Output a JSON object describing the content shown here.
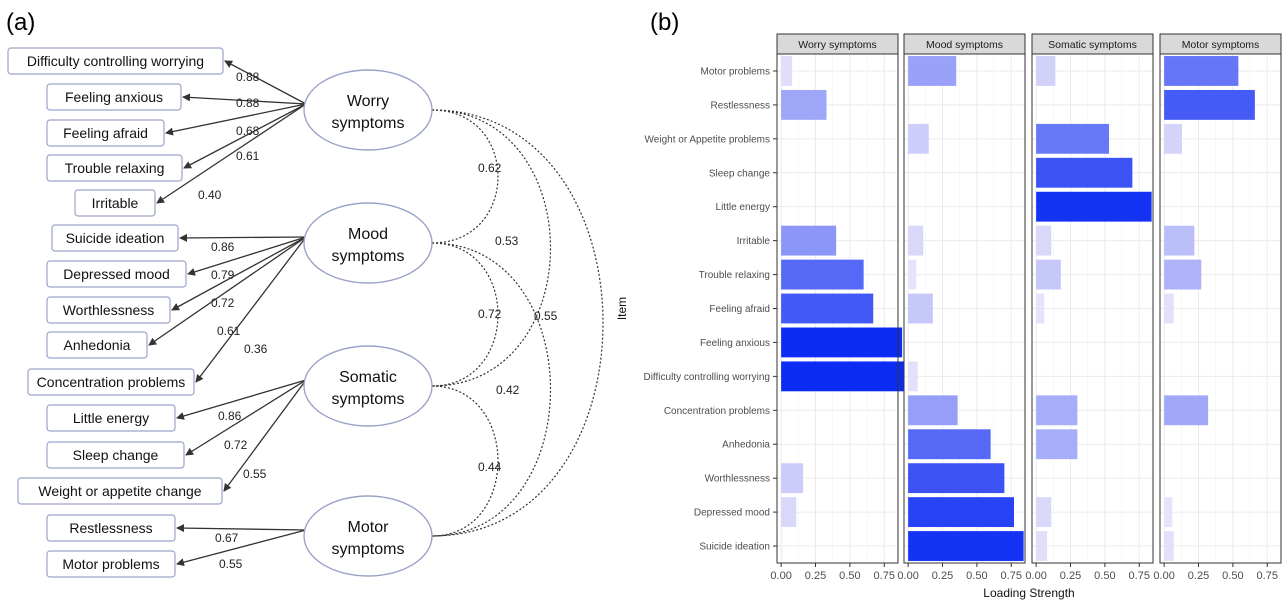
{
  "panel_a": {
    "label": "(a)",
    "factors": [
      {
        "id": "worry",
        "lines": [
          "Worry",
          "symptoms"
        ]
      },
      {
        "id": "mood",
        "lines": [
          "Mood",
          "symptoms"
        ]
      },
      {
        "id": "somatic",
        "lines": [
          "Somatic",
          "symptoms"
        ]
      },
      {
        "id": "motor",
        "lines": [
          "Motor",
          "symptoms"
        ]
      }
    ],
    "items": [
      {
        "label": "Difficulty controlling worrying",
        "factor": "worry",
        "loading": "0.88"
      },
      {
        "label": "Feeling anxious",
        "factor": "worry",
        "loading": "0.88"
      },
      {
        "label": "Feeling afraid",
        "factor": "worry",
        "loading": "0.68"
      },
      {
        "label": "Trouble relaxing",
        "factor": "worry",
        "loading": "0.61"
      },
      {
        "label": "Irritable",
        "factor": "worry",
        "loading": "0.40"
      },
      {
        "label": "Suicide ideation",
        "factor": "mood",
        "loading": "0.86"
      },
      {
        "label": "Depressed mood",
        "factor": "mood",
        "loading": "0.79"
      },
      {
        "label": "Worthlessness",
        "factor": "mood",
        "loading": "0.72"
      },
      {
        "label": "Anhedonia",
        "factor": "mood",
        "loading": "0.61"
      },
      {
        "label": "Concentration problems",
        "factor": "mood",
        "loading": "0.36"
      },
      {
        "label": "Little energy",
        "factor": "somatic",
        "loading": "0.86"
      },
      {
        "label": "Sleep change",
        "factor": "somatic",
        "loading": "0.72"
      },
      {
        "label": "Weight or appetite  change",
        "factor": "somatic",
        "loading": "0.55"
      },
      {
        "label": "Restlessness",
        "factor": "motor",
        "loading": "0.67"
      },
      {
        "label": "Motor problems",
        "factor": "motor",
        "loading": "0.55"
      }
    ],
    "correlations": [
      {
        "from": "worry",
        "to": "mood",
        "value": "0.62"
      },
      {
        "from": "worry",
        "to": "somatic",
        "value": "0.53"
      },
      {
        "from": "worry",
        "to": "motor",
        "value": "0.55"
      },
      {
        "from": "mood",
        "to": "somatic",
        "value": "0.72"
      },
      {
        "from": "mood",
        "to": "motor",
        "value": "0.42"
      },
      {
        "from": "somatic",
        "to": "motor",
        "value": "0.44"
      }
    ]
  },
  "chart_data": {
    "type": "bar",
    "panel_label": "(b)",
    "orientation": "horizontal",
    "facets": [
      "Worry symptoms",
      "Mood symptoms",
      "Somatic symptoms",
      "Motor symptoms"
    ],
    "categories": [
      "Motor problems",
      "Restlessness",
      "Weight or Appetite problems",
      "Sleep change",
      "Little energy",
      "Irritable",
      "Trouble relaxing",
      "Feeling afraid",
      "Feeling anxious",
      "Difficulty controlling worrying",
      "Concentration problems",
      "Anhedonia",
      "Worthlessness",
      "Depressed mood",
      "Suicide ideation"
    ],
    "series": [
      {
        "facet": "Worry symptoms",
        "values": [
          0.08,
          0.33,
          0,
          0,
          0,
          0.4,
          0.6,
          0.67,
          0.88,
          0.89,
          0,
          0,
          0.16,
          0.11,
          0.01
        ]
      },
      {
        "facet": "Mood symptoms",
        "values": [
          0.35,
          0.01,
          0.15,
          0,
          0,
          0.11,
          0.06,
          0.18,
          0,
          0.07,
          0.36,
          0.6,
          0.7,
          0.77,
          0.84
        ]
      },
      {
        "facet": "Somatic symptoms",
        "values": [
          0.14,
          0,
          0.53,
          0.7,
          0.84,
          0.11,
          0.18,
          0.06,
          0,
          0,
          0.3,
          0.3,
          0,
          0.11,
          0.08
        ]
      },
      {
        "facet": "Motor symptoms",
        "values": [
          0.54,
          0.66,
          0.13,
          0,
          0,
          0.22,
          0.27,
          0.07,
          0,
          0,
          0.32,
          0,
          0,
          0.06,
          0.07
        ]
      }
    ],
    "xlabel": "Loading Strength",
    "ylabel": "Item",
    "xlim": [
      -0.03,
      0.85
    ],
    "xticks": [
      "0.00",
      "0.25",
      "0.50",
      "0.75"
    ],
    "grid": true,
    "colors": {
      "high": "#0d2cf3",
      "low": "#e9e5fb",
      "negative": "#fbeee8",
      "strip": "#d9d9d9",
      "grid": "#ebebeb"
    }
  }
}
